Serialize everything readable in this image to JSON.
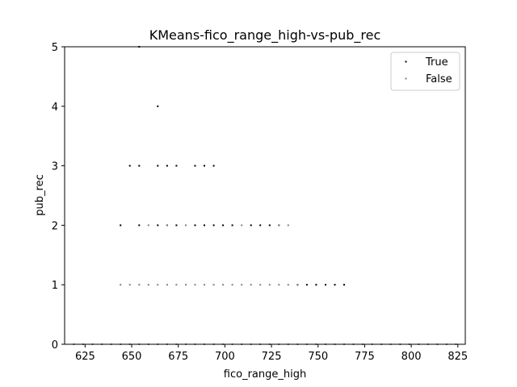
{
  "chart_data": {
    "type": "scatter",
    "title": "KMeans-fico_range_high-vs-pub_rec",
    "xlabel": "fico_range_high",
    "ylabel": "pub_rec",
    "xlim": [
      614,
      829
    ],
    "ylim": [
      0,
      5
    ],
    "xticks": [
      625,
      650,
      675,
      700,
      725,
      750,
      775,
      800,
      825
    ],
    "yticks": [
      0,
      1,
      2,
      3,
      4,
      5
    ],
    "grid": false,
    "legend": "top-right",
    "series": [
      {
        "name": "True",
        "color": "#000000",
        "points": [
          [
            654,
            5
          ],
          [
            664,
            4
          ],
          [
            649,
            3
          ],
          [
            654,
            3
          ],
          [
            664,
            3
          ],
          [
            669,
            3
          ],
          [
            674,
            3
          ],
          [
            684,
            3
          ],
          [
            689,
            3
          ],
          [
            694,
            3
          ],
          [
            644,
            2
          ],
          [
            654,
            2
          ],
          [
            664,
            2
          ],
          [
            669,
            2
          ],
          [
            674,
            2
          ],
          [
            684,
            2
          ],
          [
            689,
            2
          ],
          [
            694,
            2
          ],
          [
            699,
            2
          ],
          [
            704,
            2
          ],
          [
            714,
            2
          ],
          [
            719,
            2
          ],
          [
            724,
            2
          ],
          [
            729,
            2
          ],
          [
            739,
            1
          ],
          [
            744,
            1
          ],
          [
            749,
            1
          ],
          [
            754,
            1
          ],
          [
            759,
            1
          ],
          [
            764,
            1
          ]
        ]
      },
      {
        "name": "False",
        "color": "#808080",
        "points": [
          [
            644,
            1
          ],
          [
            649,
            1
          ],
          [
            654,
            1
          ],
          [
            659,
            1
          ],
          [
            664,
            1
          ],
          [
            669,
            1
          ],
          [
            674,
            1
          ],
          [
            679,
            1
          ],
          [
            684,
            1
          ],
          [
            689,
            1
          ],
          [
            694,
            1
          ],
          [
            699,
            1
          ],
          [
            704,
            1
          ],
          [
            709,
            1
          ],
          [
            714,
            1
          ],
          [
            719,
            1
          ],
          [
            724,
            1
          ],
          [
            729,
            1
          ],
          [
            734,
            1
          ],
          [
            739,
            1
          ],
          [
            659,
            2
          ],
          [
            669,
            2
          ],
          [
            679,
            2
          ],
          [
            709,
            2
          ],
          [
            729,
            2
          ],
          [
            734,
            2
          ],
          [
            619,
            0
          ],
          [
            624,
            0
          ],
          [
            629,
            0
          ],
          [
            634,
            0
          ],
          [
            639,
            0
          ],
          [
            644,
            0
          ],
          [
            649,
            0
          ],
          [
            654,
            0
          ],
          [
            659,
            0
          ],
          [
            664,
            0
          ],
          [
            669,
            0
          ],
          [
            674,
            0
          ],
          [
            679,
            0
          ],
          [
            684,
            0
          ],
          [
            689,
            0
          ],
          [
            694,
            0
          ],
          [
            699,
            0
          ],
          [
            704,
            0
          ],
          [
            709,
            0
          ],
          [
            714,
            0
          ],
          [
            719,
            0
          ],
          [
            724,
            0
          ],
          [
            729,
            0
          ],
          [
            734,
            0
          ],
          [
            739,
            0
          ],
          [
            744,
            0
          ],
          [
            749,
            0
          ],
          [
            754,
            0
          ],
          [
            759,
            0
          ],
          [
            764,
            0
          ],
          [
            769,
            0
          ],
          [
            774,
            0
          ],
          [
            779,
            0
          ],
          [
            784,
            0
          ],
          [
            789,
            0
          ],
          [
            794,
            0
          ],
          [
            799,
            0
          ],
          [
            804,
            0
          ],
          [
            809,
            0
          ],
          [
            814,
            0
          ],
          [
            819,
            0
          ],
          [
            824,
            0
          ]
        ]
      }
    ]
  }
}
